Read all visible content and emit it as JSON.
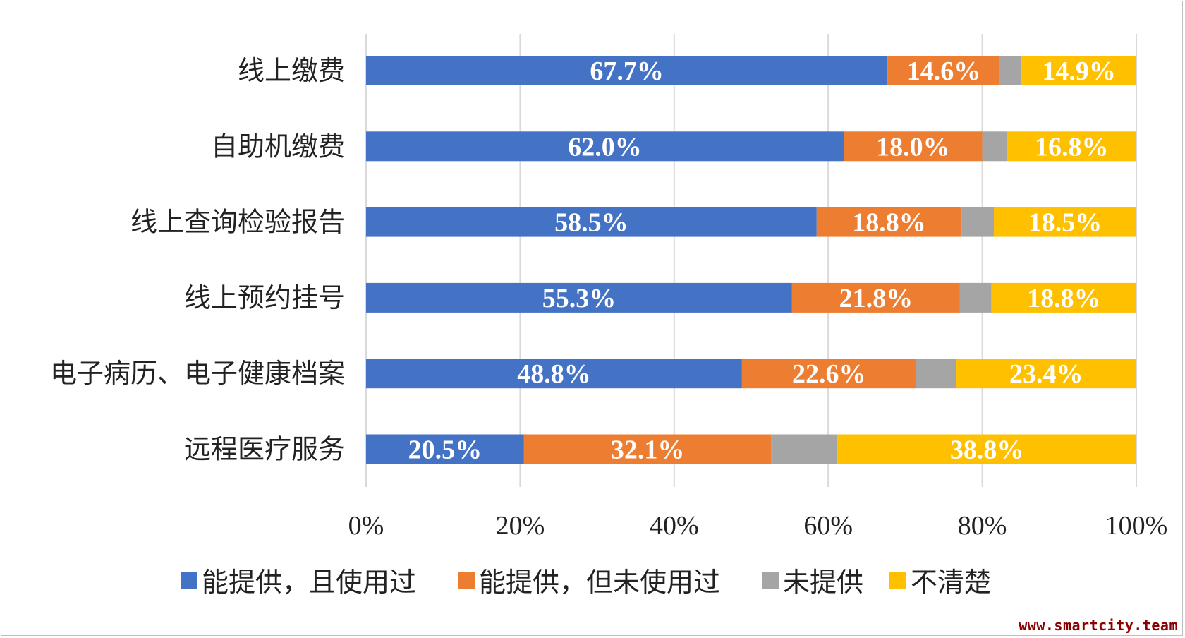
{
  "chart_data": {
    "type": "bar",
    "orientation": "horizontal",
    "stacked": true,
    "categories": [
      "线上缴费",
      "自助机缴费",
      "线上查询检验报告",
      "线上预约挂号",
      "电子病历、电子健康档案",
      "远程医疗服务"
    ],
    "series": [
      {
        "name": "能提供，且使用过",
        "color": "#4472c4",
        "values": [
          67.7,
          62.0,
          58.5,
          55.3,
          48.8,
          20.5
        ],
        "labels": [
          "67.7%",
          "62.0%",
          "58.5%",
          "55.3%",
          "48.8%",
          "20.5%"
        ]
      },
      {
        "name": "能提供，但未使用过",
        "color": "#ed7d31",
        "values": [
          14.6,
          18.0,
          18.8,
          21.8,
          22.6,
          32.1
        ],
        "labels": [
          "14.6%",
          "18.0%",
          "18.8%",
          "21.8%",
          "22.6%",
          "32.1%"
        ]
      },
      {
        "name": "未提供",
        "color": "#a5a5a5",
        "values": [
          2.8,
          3.2,
          4.2,
          4.1,
          5.2,
          8.6
        ],
        "labels": [
          "",
          "",
          "",
          "",
          "",
          ""
        ]
      },
      {
        "name": "不清楚",
        "color": "#ffc000",
        "values": [
          14.9,
          16.8,
          18.5,
          18.8,
          23.4,
          38.8
        ],
        "labels": [
          "14.9%",
          "16.8%",
          "18.5%",
          "18.8%",
          "23.4%",
          "38.8%"
        ]
      }
    ],
    "x_ticks": [
      "0%",
      "20%",
      "40%",
      "60%",
      "80%",
      "100%"
    ],
    "xlim": [
      0,
      100
    ],
    "grid": "vertical",
    "legend_position": "bottom"
  },
  "watermark": "www.smartcity.team"
}
